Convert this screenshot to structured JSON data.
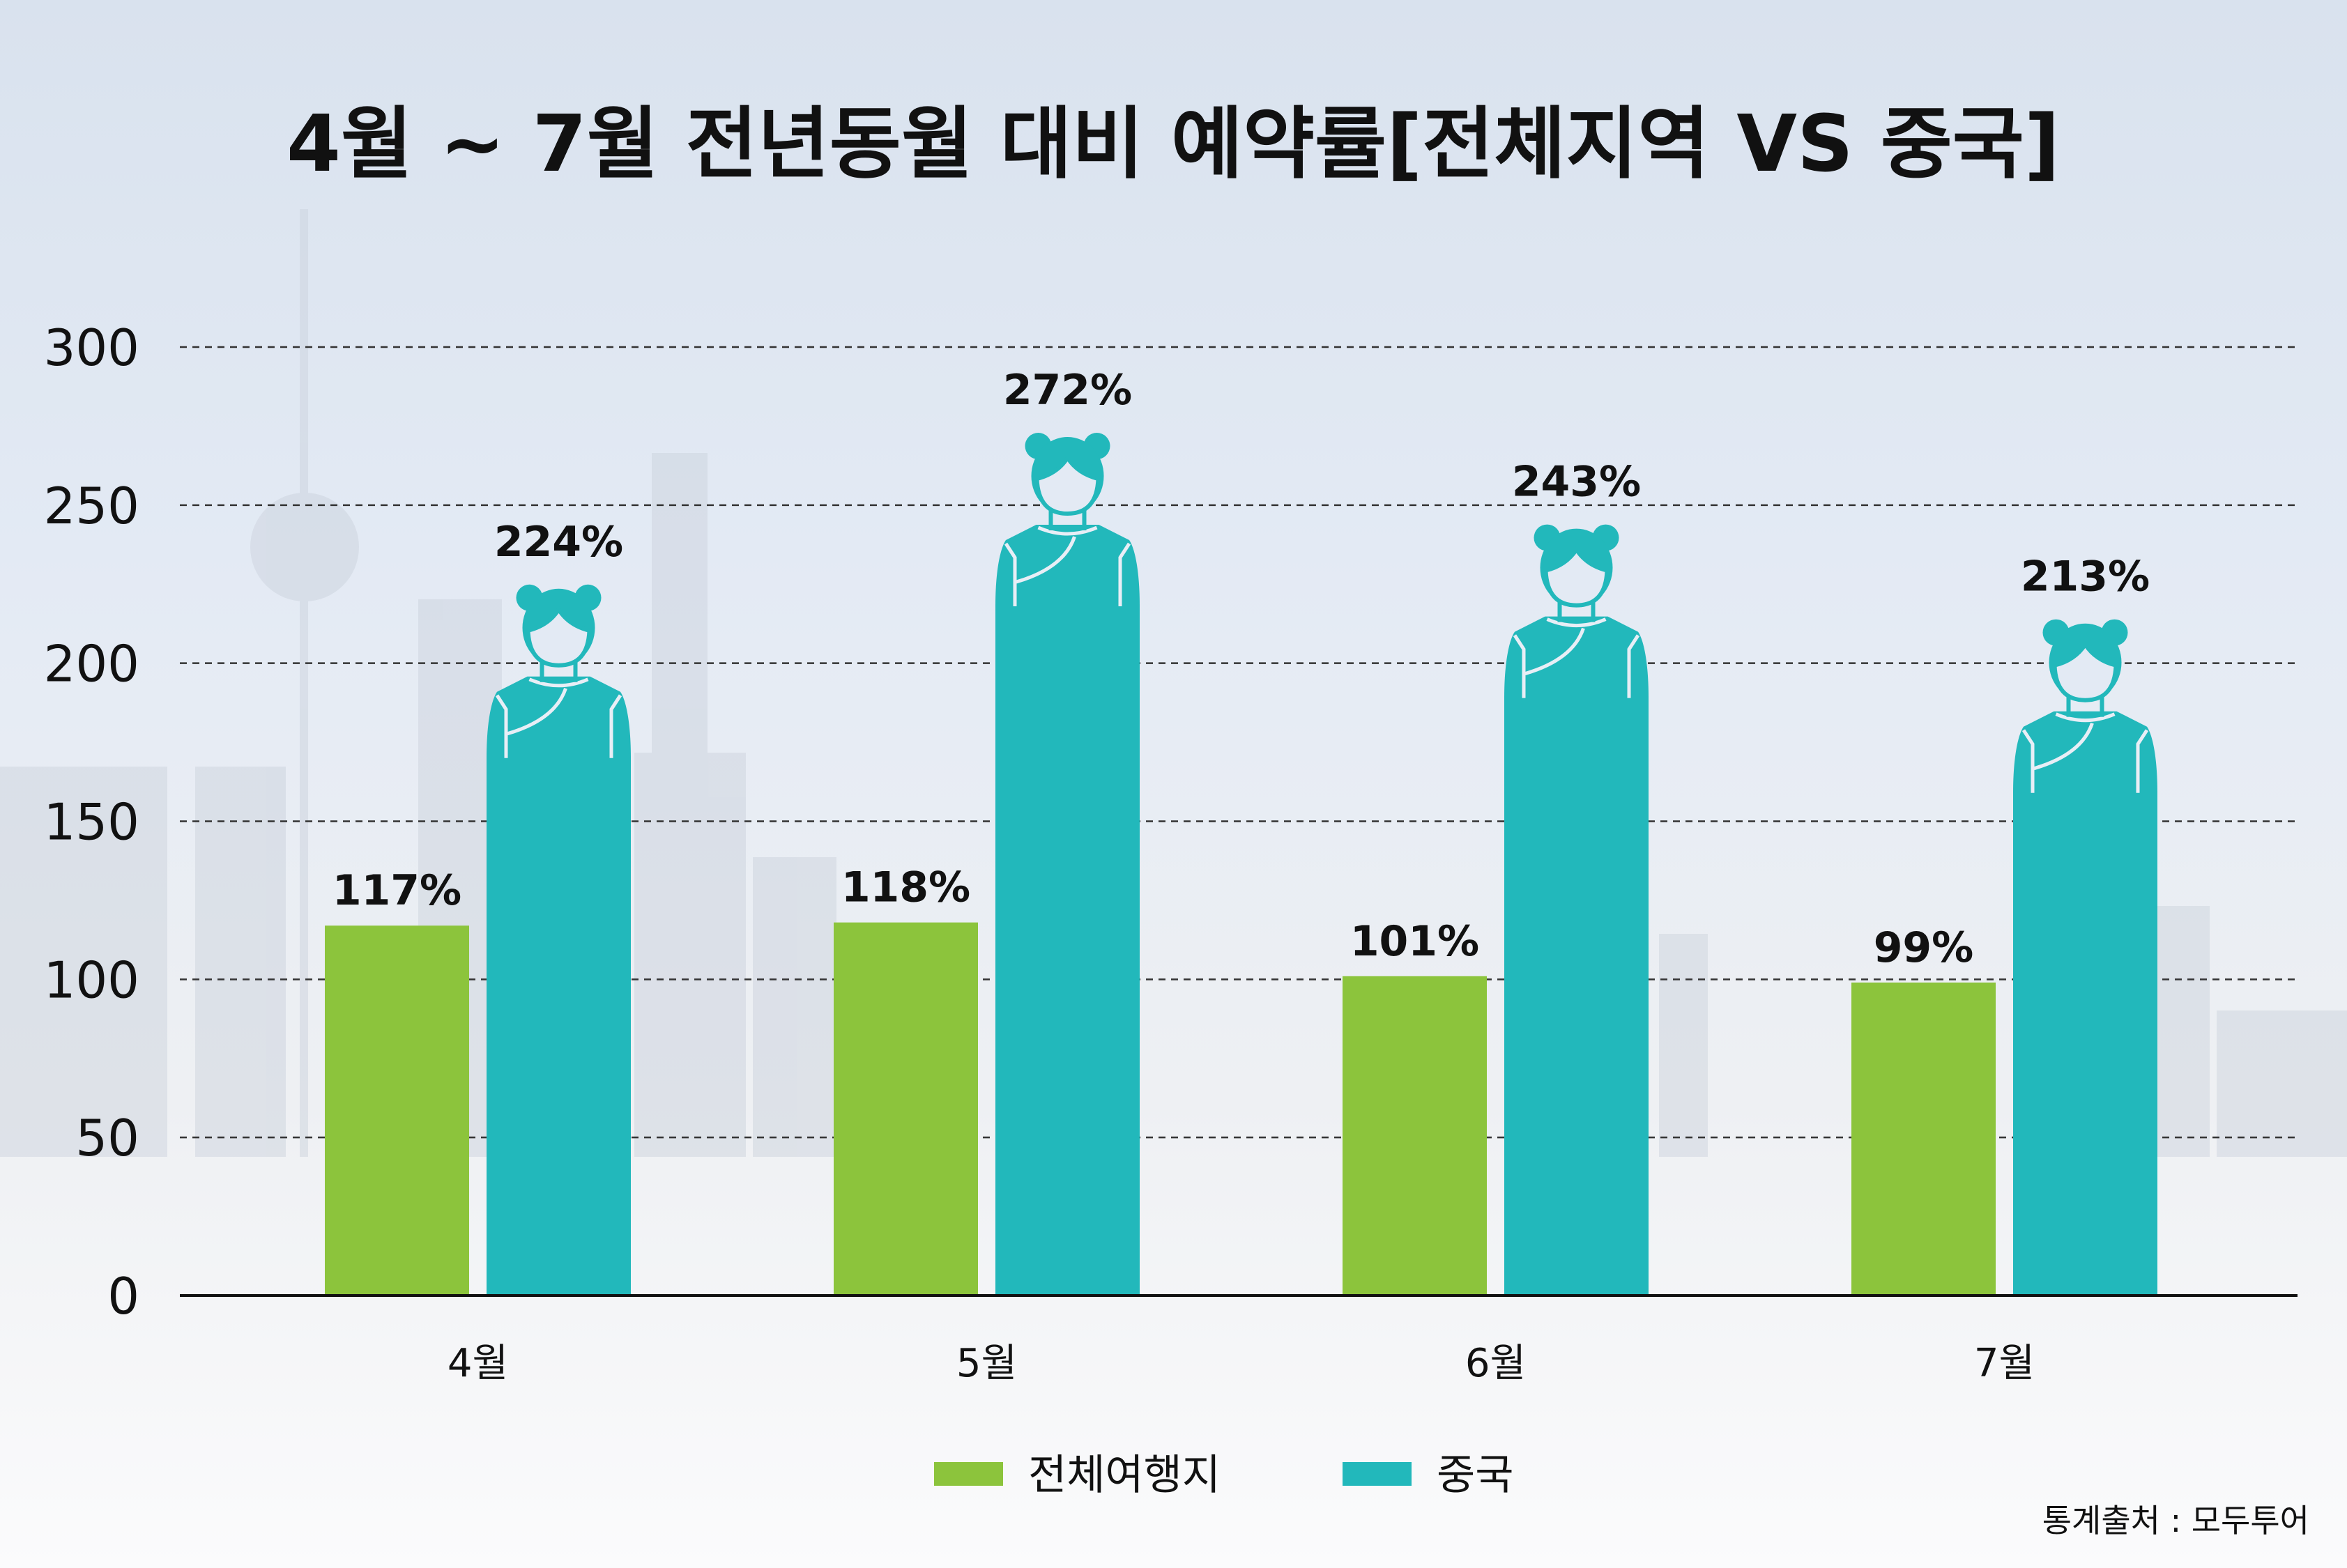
{
  "chart_data": {
    "type": "bar",
    "title": "4월 ~ 7월 전년동월 대비 예약률[전체지역 VS 중국]",
    "xlabel": "",
    "ylabel": "",
    "categories": [
      "4월",
      "5월",
      "6월",
      "7월"
    ],
    "series": [
      {
        "name": "전체여행지",
        "values": [
          117,
          118,
          101,
          99
        ],
        "labels": [
          "117%",
          "118%",
          "101%",
          "99%"
        ],
        "color": "#8cc43c"
      },
      {
        "name": "중국",
        "values": [
          224,
          272,
          243,
          213
        ],
        "labels": [
          "224%",
          "272%",
          "243%",
          "213%"
        ],
        "color": "#22b8bb"
      }
    ],
    "ylim": [
      0,
      300
    ],
    "yticks": [
      "0",
      "50",
      "100",
      "150",
      "200",
      "250",
      "300"
    ],
    "grid": true,
    "legend": "bottom-center",
    "source": "통계출처 : 모두투어"
  }
}
